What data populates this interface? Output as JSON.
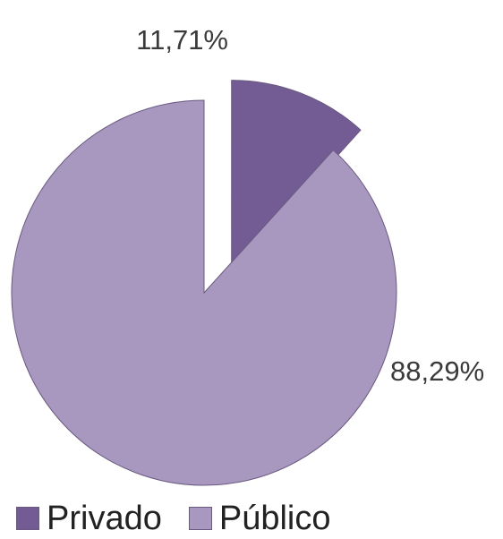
{
  "chart_data": {
    "type": "pie",
    "title": "",
    "categories": [
      "Privado",
      "Público"
    ],
    "values": [
      11.71,
      88.29
    ],
    "value_labels": [
      "11,71%",
      "88,29%"
    ],
    "colors": [
      "#735b93",
      "#a898bf"
    ],
    "exploded": [
      true,
      false
    ],
    "legend": {
      "placement": "bottom",
      "entries": [
        "Privado",
        "Público"
      ]
    }
  }
}
